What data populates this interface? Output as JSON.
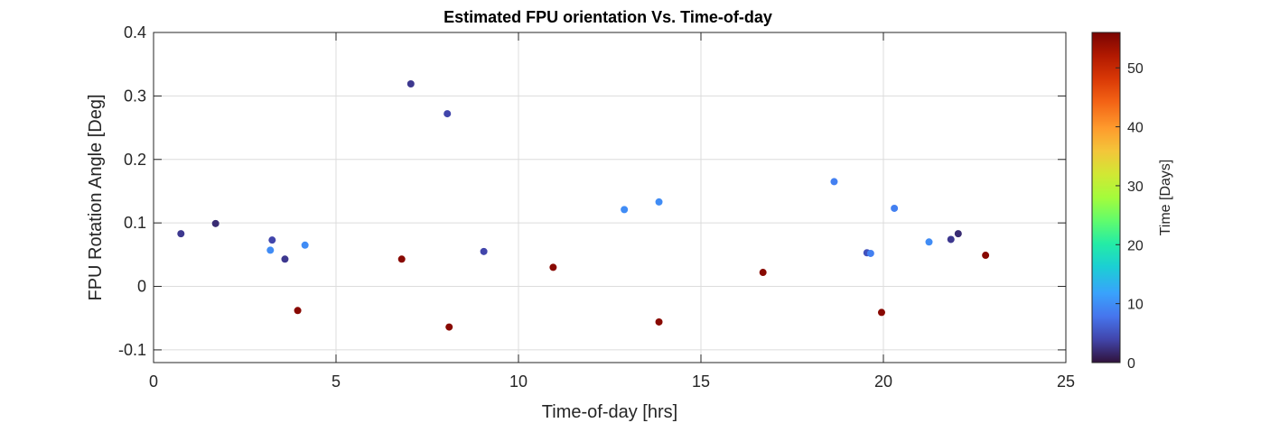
{
  "chart_data": {
    "type": "scatter",
    "title": "Estimated FPU orientation Vs. Time-of-day",
    "xlabel": "Time-of-day [hrs]",
    "ylabel": "FPU Rotation Angle [Deg]",
    "xlim": [
      0,
      25
    ],
    "ylim": [
      -0.12,
      0.4
    ],
    "xticks": [
      0,
      5,
      10,
      15,
      20,
      25
    ],
    "yticks": [
      -0.1,
      0,
      0.1,
      0.2,
      0.3,
      0.4
    ],
    "ytick_labels": [
      "-0.1",
      "0",
      "0.1",
      "0.2",
      "0.3",
      "0.4"
    ],
    "grid": true,
    "colorbar": {
      "label": "Time [Days]",
      "range": [
        0,
        56
      ],
      "ticks": [
        0,
        10,
        20,
        30,
        40,
        50
      ],
      "colormap": "turbo"
    },
    "points": [
      {
        "x": 0.75,
        "y": 0.083,
        "c": 3
      },
      {
        "x": 1.7,
        "y": 0.099,
        "c": 2
      },
      {
        "x": 3.2,
        "y": 0.057,
        "c": 10
      },
      {
        "x": 3.25,
        "y": 0.073,
        "c": 4
      },
      {
        "x": 3.6,
        "y": 0.043,
        "c": 3
      },
      {
        "x": 3.95,
        "y": -0.038,
        "c": 55
      },
      {
        "x": 4.15,
        "y": 0.065,
        "c": 10
      },
      {
        "x": 6.8,
        "y": 0.043,
        "c": 55
      },
      {
        "x": 7.05,
        "y": 0.319,
        "c": 3
      },
      {
        "x": 8.05,
        "y": 0.272,
        "c": 4
      },
      {
        "x": 8.1,
        "y": -0.064,
        "c": 55
      },
      {
        "x": 9.05,
        "y": 0.055,
        "c": 4
      },
      {
        "x": 10.95,
        "y": 0.03,
        "c": 55
      },
      {
        "x": 12.9,
        "y": 0.121,
        "c": 10
      },
      {
        "x": 13.85,
        "y": 0.133,
        "c": 10
      },
      {
        "x": 13.85,
        "y": -0.056,
        "c": 55
      },
      {
        "x": 16.7,
        "y": 0.022,
        "c": 55
      },
      {
        "x": 18.65,
        "y": 0.165,
        "c": 9
      },
      {
        "x": 19.55,
        "y": 0.053,
        "c": 5
      },
      {
        "x": 19.65,
        "y": 0.052,
        "c": 9
      },
      {
        "x": 19.95,
        "y": -0.041,
        "c": 55
      },
      {
        "x": 20.3,
        "y": 0.123,
        "c": 9
      },
      {
        "x": 21.25,
        "y": 0.07,
        "c": 10
      },
      {
        "x": 21.85,
        "y": 0.074,
        "c": 3
      },
      {
        "x": 22.05,
        "y": 0.083,
        "c": 2
      },
      {
        "x": 22.8,
        "y": 0.049,
        "c": 55
      }
    ]
  }
}
